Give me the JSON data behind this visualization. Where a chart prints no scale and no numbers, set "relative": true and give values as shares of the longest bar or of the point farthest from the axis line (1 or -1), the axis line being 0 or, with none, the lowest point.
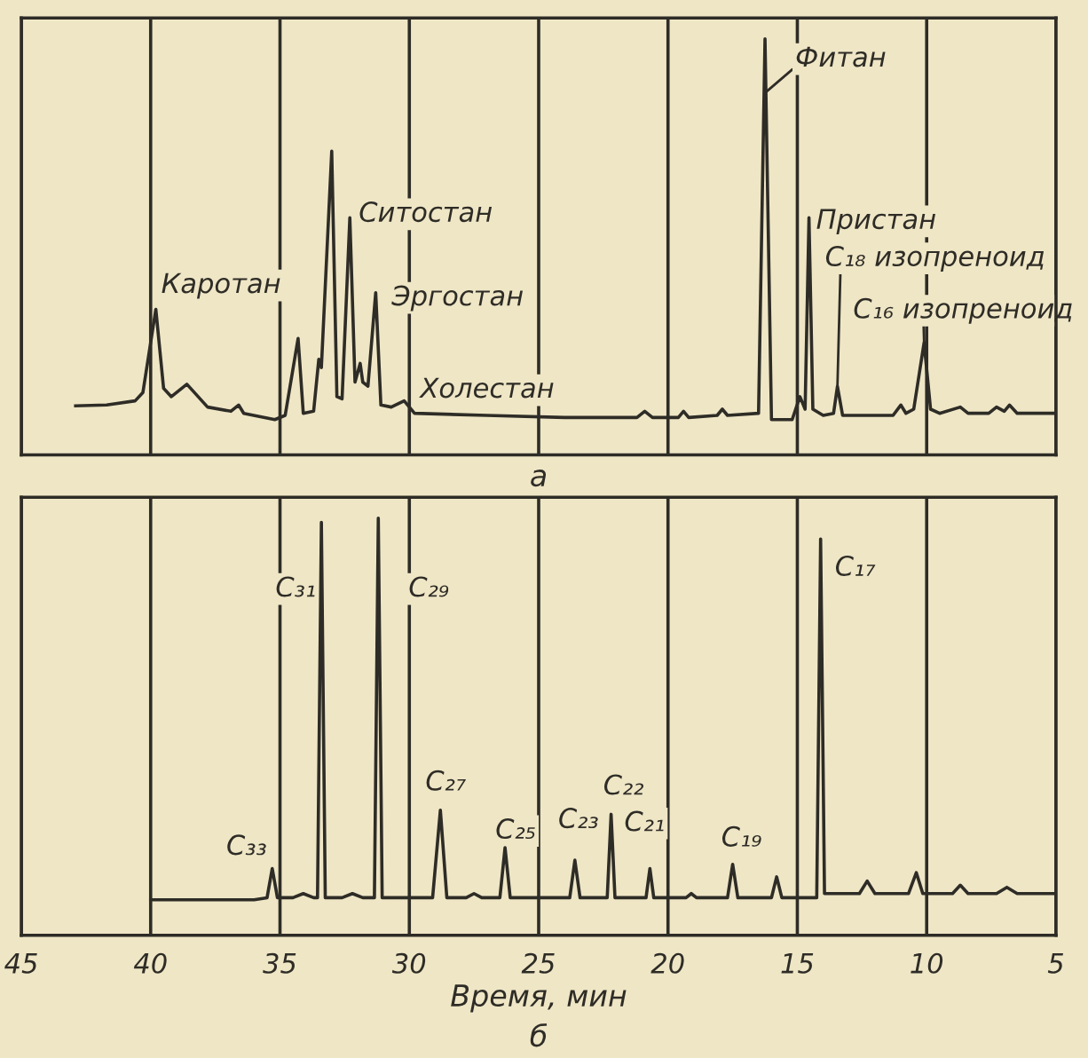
{
  "chart_data": [
    {
      "type": "line",
      "title": "а",
      "relative": true,
      "xlim": [
        45,
        5
      ],
      "xticks": [
        45,
        40,
        35,
        30,
        25,
        20,
        15,
        10,
        5
      ],
      "tick_labels": false,
      "grid": "x",
      "series": [
        {
          "color": "#2e2c26",
          "x": [
            42.9,
            41.7,
            40.6,
            40.3,
            39.8,
            39.5,
            39.2,
            38.6,
            37.8,
            36.9,
            36.6,
            36.4,
            35.2,
            34.8,
            34.3,
            34.1,
            33.7,
            33.5,
            33.4,
            33.0,
            32.8,
            32.6,
            32.3,
            32.1,
            31.9,
            31.8,
            31.6,
            31.3,
            31.1,
            30.7,
            30.2,
            29.8,
            27.0,
            24.0,
            21.2,
            20.9,
            20.6,
            19.6,
            19.4,
            19.2,
            18.1,
            17.9,
            17.7,
            16.5,
            16.25,
            16.0,
            15.2,
            14.9,
            14.7,
            14.55,
            14.4,
            14.0,
            13.6,
            13.45,
            13.25,
            11.3,
            11.0,
            10.8,
            10.5,
            10.1,
            9.85,
            9.5,
            8.7,
            8.4,
            7.6,
            7.3,
            7.0,
            6.8,
            6.5,
            5.1
          ],
          "values": [
            0.118,
            0.12,
            0.13,
            0.15,
            0.35,
            0.16,
            0.14,
            0.17,
            0.115,
            0.105,
            0.12,
            0.1,
            0.085,
            0.095,
            0.28,
            0.1,
            0.105,
            0.23,
            0.21,
            0.73,
            0.14,
            0.135,
            0.57,
            0.175,
            0.22,
            0.175,
            0.165,
            0.39,
            0.12,
            0.115,
            0.13,
            0.1,
            0.095,
            0.09,
            0.09,
            0.105,
            0.09,
            0.09,
            0.105,
            0.09,
            0.095,
            0.11,
            0.095,
            0.1,
            1.0,
            0.085,
            0.085,
            0.14,
            0.11,
            0.57,
            0.11,
            0.095,
            0.1,
            0.165,
            0.095,
            0.095,
            0.12,
            0.1,
            0.11,
            0.27,
            0.11,
            0.1,
            0.115,
            0.1,
            0.1,
            0.115,
            0.105,
            0.12,
            0.1,
            0.1
          ]
        }
      ],
      "annotations": [
        {
          "text": "Каротан",
          "x": 39.8,
          "y": 0.35
        },
        {
          "text": "Ситостан",
          "x": 32.3,
          "y": 0.57
        },
        {
          "text": "Эргостан",
          "x": 31.3,
          "y": 0.39
        },
        {
          "text": "Холестан",
          "x": 30.2,
          "y": 0.13
        },
        {
          "text": "Фитан",
          "x": 16.25,
          "y": 0.87
        },
        {
          "text": "Пристан",
          "x": 14.55,
          "y": 0.57
        },
        {
          "text": "C₁₈ изопреноид",
          "x": 13.45,
          "y": 0.165
        },
        {
          "text": "C₁₆ изопреноид",
          "x": 10.1,
          "y": 0.27
        }
      ]
    },
    {
      "type": "line",
      "title": "б",
      "xlabel": "Время, мин",
      "relative": true,
      "xlim": [
        45,
        5
      ],
      "xticks": [
        45,
        40,
        35,
        30,
        25,
        20,
        15,
        10,
        5
      ],
      "tick_labels": "x",
      "grid": "x",
      "series": [
        {
          "color": "#2e2c26",
          "x": [
            40,
            36.0,
            35.5,
            35.3,
            35.1,
            34.5,
            34.1,
            33.7,
            33.55,
            33.4,
            33.25,
            32.6,
            32.2,
            31.8,
            31.35,
            31.2,
            31.05,
            29.1,
            28.8,
            28.55,
            27.8,
            27.5,
            27.2,
            26.5,
            26.3,
            26.1,
            23.8,
            23.6,
            23.4,
            22.35,
            22.2,
            22.05,
            20.85,
            20.7,
            20.55,
            19.3,
            19.1,
            18.9,
            17.7,
            17.5,
            17.3,
            16.0,
            15.8,
            15.6,
            14.25,
            14.1,
            13.95,
            12.6,
            12.3,
            12.0,
            10.7,
            10.4,
            10.15,
            9.0,
            8.7,
            8.4,
            7.3,
            6.9,
            6.5,
            5.05
          ],
          "values": [
            0.085,
            0.085,
            0.09,
            0.16,
            0.09,
            0.09,
            0.1,
            0.09,
            0.09,
            0.99,
            0.09,
            0.09,
            0.1,
            0.09,
            0.09,
            1.0,
            0.09,
            0.09,
            0.3,
            0.09,
            0.09,
            0.1,
            0.09,
            0.09,
            0.21,
            0.09,
            0.09,
            0.18,
            0.09,
            0.09,
            0.29,
            0.09,
            0.09,
            0.16,
            0.09,
            0.09,
            0.1,
            0.09,
            0.09,
            0.17,
            0.09,
            0.09,
            0.14,
            0.09,
            0.09,
            0.95,
            0.1,
            0.1,
            0.13,
            0.1,
            0.1,
            0.15,
            0.1,
            0.1,
            0.12,
            0.1,
            0.1,
            0.115,
            0.1,
            0.1
          ]
        }
      ],
      "annotations": [
        {
          "text": "C₃₃",
          "x": 35.3,
          "y": 0.16
        },
        {
          "text": "C₃₁",
          "x": 33.4,
          "y": 0.83
        },
        {
          "text": "C₂₉",
          "x": 31.2,
          "y": 0.83
        },
        {
          "text": "C₂₇",
          "x": 28.8,
          "y": 0.3
        },
        {
          "text": "C₂₅",
          "x": 26.3,
          "y": 0.21
        },
        {
          "text": "C₂₃",
          "x": 23.6,
          "y": 0.18
        },
        {
          "text": "C₂₂",
          "x": 22.2,
          "y": 0.29
        },
        {
          "text": "C₂₁",
          "x": 20.7,
          "y": 0.16
        },
        {
          "text": "C₁₉",
          "x": 17.5,
          "y": 0.17
        },
        {
          "text": "C₁₇",
          "x": 14.1,
          "y": 0.88
        }
      ]
    }
  ]
}
